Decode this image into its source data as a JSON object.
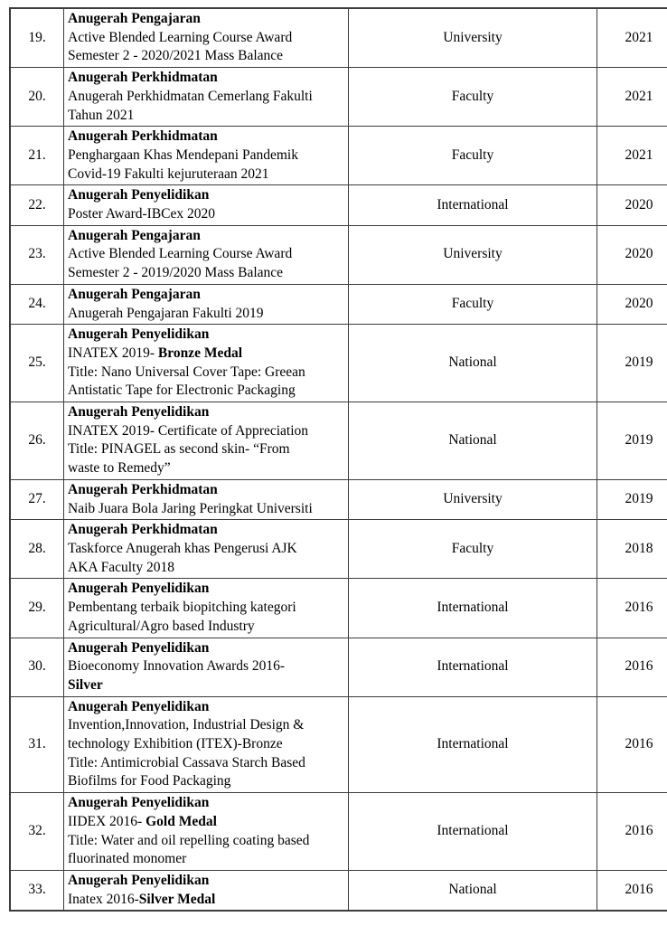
{
  "document": {
    "kind": "awards-list-table",
    "visible_row_range": "19-33"
  },
  "table": {
    "columns": [
      {
        "key": "no",
        "label": ""
      },
      {
        "key": "award",
        "label": ""
      },
      {
        "key": "level",
        "label": ""
      },
      {
        "key": "year",
        "label": ""
      }
    ],
    "border_color": "#3c3c3c",
    "rows": [
      {
        "no": "19.",
        "category": "Anugerah Pengajaran",
        "lines": [
          [
            {
              "t": "Active Blended Learning Course Award",
              "b": false
            }
          ],
          [
            {
              "t": "Semester 2 - 2020/2021 Mass Balance",
              "b": false
            }
          ]
        ],
        "level": "University",
        "year": "2021"
      },
      {
        "no": "20.",
        "category": "Anugerah Perkhidmatan",
        "lines": [
          [
            {
              "t": "Anugerah Perkhidmatan Cemerlang Fakulti",
              "b": false
            }
          ],
          [
            {
              "t": "Tahun 2021",
              "b": false
            }
          ]
        ],
        "level": "Faculty",
        "year": "2021"
      },
      {
        "no": "21.",
        "category": "Anugerah Perkhidmatan",
        "lines": [
          [
            {
              "t": "Penghargaan Khas Mendepani Pandemik",
              "b": false
            }
          ],
          [
            {
              "t": "Covid-19 Fakulti kejuruteraan 2021",
              "b": false
            }
          ]
        ],
        "level": "Faculty",
        "year": "2021"
      },
      {
        "no": "22.",
        "category": "Anugerah Penyelidikan",
        "lines": [
          [
            {
              "t": "Poster Award-IBCex 2020",
              "b": false
            }
          ]
        ],
        "level": "International",
        "year": "2020"
      },
      {
        "no": "23.",
        "category": "Anugerah Pengajaran",
        "lines": [
          [
            {
              "t": "Active Blended Learning Course Award",
              "b": false
            }
          ],
          [
            {
              "t": "Semester 2 - 2019/2020 Mass Balance",
              "b": false
            }
          ]
        ],
        "level": "University",
        "year": "2020"
      },
      {
        "no": "24.",
        "category": "Anugerah Pengajaran",
        "lines": [
          [
            {
              "t": "Anugerah Pengajaran Fakulti 2019",
              "b": false
            }
          ]
        ],
        "level": "Faculty",
        "year": "2020"
      },
      {
        "no": "25.",
        "category": "Anugerah Penyelidikan",
        "lines": [
          [
            {
              "t": "INATEX 2019- ",
              "b": false
            },
            {
              "t": "Bronze Medal",
              "b": true
            }
          ],
          [
            {
              "t": "Title: Nano Universal Cover Tape: Greean",
              "b": false
            }
          ],
          [
            {
              "t": "Antistatic Tape for Electronic Packaging",
              "b": false
            }
          ]
        ],
        "level": "National",
        "year": "2019"
      },
      {
        "no": "26.",
        "category": "Anugerah Penyelidikan",
        "lines": [
          [
            {
              "t": "INATEX 2019- Certificate of Appreciation",
              "b": false
            }
          ],
          [
            {
              "t": "Title: PINAGEL as second skin- “From",
              "b": false
            }
          ],
          [
            {
              "t": "waste to Remedy”",
              "b": false
            }
          ]
        ],
        "level": "National",
        "year": "2019"
      },
      {
        "no": "27.",
        "category": "Anugerah Perkhidmatan",
        "lines": [
          [
            {
              "t": "Naib Juara Bola Jaring Peringkat Universiti",
              "b": false
            }
          ]
        ],
        "level": "University",
        "year": "2019"
      },
      {
        "no": "28.",
        "category": "Anugerah Perkhidmatan",
        "lines": [
          [
            {
              "t": "Taskforce Anugerah khas Pengerusi AJK",
              "b": false
            }
          ],
          [
            {
              "t": "AKA Faculty 2018",
              "b": false
            }
          ]
        ],
        "level": "Faculty",
        "year": "2018"
      },
      {
        "no": "29.",
        "category": "Anugerah Penyelidikan",
        "lines": [
          [
            {
              "t": "Pembentang terbaik biopitching kategori",
              "b": false
            }
          ],
          [
            {
              "t": "Agricultural/Agro based Industry",
              "b": false
            }
          ]
        ],
        "level": "International",
        "year": "2016"
      },
      {
        "no": "30.",
        "category": "Anugerah Penyelidikan",
        "lines": [
          [
            {
              "t": "Bioeconomy Innovation Awards 2016-",
              "b": false
            }
          ],
          [
            {
              "t": "Silver",
              "b": true
            }
          ]
        ],
        "level": "International",
        "year": "2016"
      },
      {
        "no": "31.",
        "category": "Anugerah Penyelidikan",
        "lines": [
          [
            {
              "t": "Invention,Innovation, Industrial Design &",
              "b": false
            }
          ],
          [
            {
              "t": "technology Exhibition (ITEX)-Bronze",
              "b": false
            }
          ],
          [
            {
              "t": "Title: Antimicrobial Cassava Starch Based",
              "b": false
            }
          ],
          [
            {
              "t": "Biofilms for Food Packaging",
              "b": false
            }
          ]
        ],
        "level": "International",
        "year": "2016"
      },
      {
        "no": "32.",
        "category": "Anugerah Penyelidikan",
        "lines": [
          [
            {
              "t": "IIDEX 2016- ",
              "b": false
            },
            {
              "t": "Gold Medal",
              "b": true
            }
          ],
          [
            {
              "t": "Title: Water and oil repelling coating based",
              "b": false
            }
          ],
          [
            {
              "t": "fluorinated monomer",
              "b": false
            }
          ]
        ],
        "level": "International",
        "year": "2016"
      },
      {
        "no": "33.",
        "category": "Anugerah Penyelidikan",
        "lines": [
          [
            {
              "t": "Inatex 2016-",
              "b": false
            },
            {
              "t": "Silver Medal",
              "b": true
            }
          ]
        ],
        "level": "National",
        "year": "2016"
      }
    ]
  }
}
